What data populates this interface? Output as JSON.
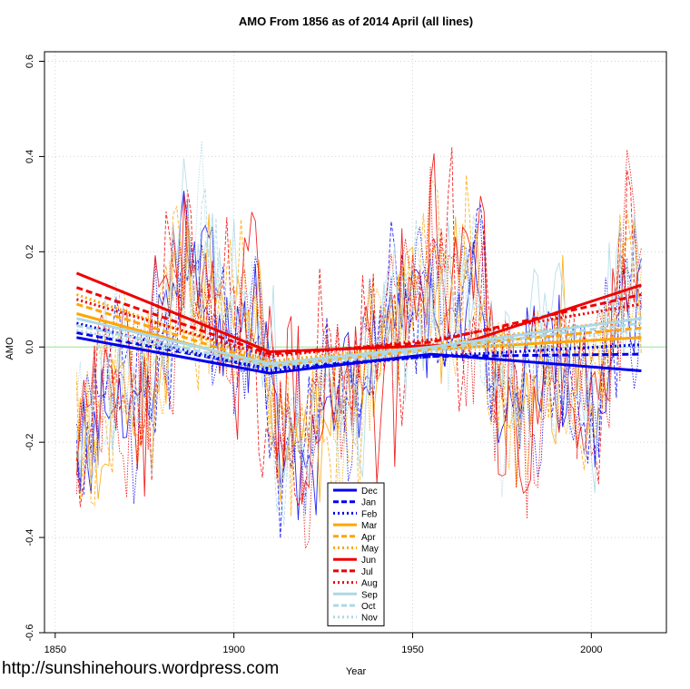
{
  "footer": {
    "url_text": "http://sunshinehours.wordpress.com"
  },
  "chart_data": {
    "type": "line",
    "title": "AMO From 1856 as of 2014 April (all lines)",
    "xlabel": "Year",
    "ylabel": "AMO",
    "xlim": [
      1847,
      2021
    ],
    "ylim": [
      -0.6,
      0.62
    ],
    "x_ticks": [
      1850,
      1900,
      1950,
      2000
    ],
    "y_ticks": [
      -0.6,
      -0.4,
      -0.2,
      0.0,
      0.2,
      0.4,
      0.6
    ],
    "x_tick_labels": [
      "1850",
      "1900",
      "1950",
      "2000"
    ],
    "y_tick_labels": [
      "-0.6",
      "-0.4",
      "-0.2",
      "0.0",
      "0.2",
      "0.4",
      "0.6"
    ],
    "grid": true,
    "zero_line_color": "#90ee90",
    "legend_position": "bottom-center",
    "colors": {
      "blue": "#0000ee",
      "orange": "#ffa500",
      "red": "#ee0000",
      "lightblue": "#add8e6"
    },
    "series": [
      {
        "name": "Dec",
        "color": "#0000ee",
        "dash": "solid",
        "trend": [
          [
            1856,
            0.02
          ],
          [
            1910,
            -0.055
          ],
          [
            1955,
            -0.015
          ],
          [
            2014,
            -0.05
          ]
        ]
      },
      {
        "name": "Jan",
        "color": "#0000ee",
        "dash": "dashed",
        "trend": [
          [
            1856,
            0.03
          ],
          [
            1910,
            -0.045
          ],
          [
            1955,
            -0.02
          ],
          [
            2014,
            -0.015
          ]
        ]
      },
      {
        "name": "Feb",
        "color": "#0000ee",
        "dash": "dotted",
        "trend": [
          [
            1856,
            0.05
          ],
          [
            1910,
            -0.05
          ],
          [
            1955,
            -0.02
          ],
          [
            2014,
            0.005
          ]
        ]
      },
      {
        "name": "Mar",
        "color": "#ffa500",
        "dash": "solid",
        "trend": [
          [
            1856,
            0.07
          ],
          [
            1910,
            -0.04
          ],
          [
            1955,
            -0.005
          ],
          [
            2014,
            0.02
          ]
        ]
      },
      {
        "name": "Apr",
        "color": "#ffa500",
        "dash": "dashed",
        "trend": [
          [
            1856,
            0.09
          ],
          [
            1910,
            -0.035
          ],
          [
            1955,
            0.0
          ],
          [
            2014,
            0.04
          ]
        ]
      },
      {
        "name": "May",
        "color": "#ffa500",
        "dash": "dotted",
        "trend": [
          [
            1856,
            0.11
          ],
          [
            1910,
            -0.03
          ],
          [
            1955,
            0.005
          ],
          [
            2014,
            0.06
          ]
        ]
      },
      {
        "name": "Jun",
        "color": "#ee0000",
        "dash": "solid",
        "trend": [
          [
            1856,
            0.155
          ],
          [
            1910,
            -0.01
          ],
          [
            1963,
            0.005
          ],
          [
            2014,
            0.13
          ]
        ]
      },
      {
        "name": "Jul",
        "color": "#ee0000",
        "dash": "dashed",
        "trend": [
          [
            1856,
            0.125
          ],
          [
            1910,
            -0.015
          ],
          [
            1955,
            0.01
          ],
          [
            2014,
            0.11
          ]
        ]
      },
      {
        "name": "Aug",
        "color": "#ee0000",
        "dash": "dotted",
        "trend": [
          [
            1856,
            0.1
          ],
          [
            1910,
            -0.02
          ],
          [
            1955,
            0.015
          ],
          [
            2014,
            0.09
          ]
        ]
      },
      {
        "name": "Sep",
        "color": "#add8e6",
        "dash": "solid",
        "trend": [
          [
            1856,
            0.06
          ],
          [
            1910,
            -0.035
          ],
          [
            1955,
            0.0
          ],
          [
            2014,
            0.06
          ]
        ]
      },
      {
        "name": "Oct",
        "color": "#add8e6",
        "dash": "dashed",
        "trend": [
          [
            1856,
            0.045
          ],
          [
            1910,
            -0.04
          ],
          [
            1955,
            -0.005
          ],
          [
            2014,
            0.05
          ]
        ]
      },
      {
        "name": "Nov",
        "color": "#add8e6",
        "dash": "dotted",
        "trend": [
          [
            1856,
            0.035
          ],
          [
            1910,
            -0.045
          ],
          [
            1955,
            -0.01
          ],
          [
            2014,
            0.035
          ]
        ]
      }
    ]
  }
}
